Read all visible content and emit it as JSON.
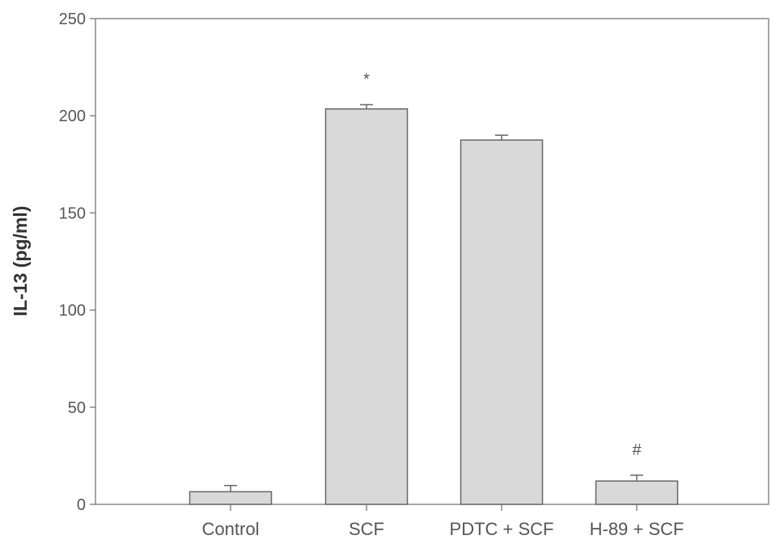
{
  "chart_data": {
    "type": "bar",
    "title": "",
    "xlabel": "",
    "ylabel": "IL-13 (pg/ml)",
    "ylim": [
      0,
      250
    ],
    "yticks": [
      0,
      50,
      100,
      150,
      200,
      250
    ],
    "grid": false,
    "categories": [
      "Control",
      "SCF",
      "PDTC + SCF",
      "H-89 + SCF"
    ],
    "values": [
      6.5,
      203.5,
      187.5,
      12
    ],
    "error_upper": [
      9.7,
      205.7,
      190,
      15
    ],
    "annotations": [
      "",
      "*",
      "",
      "#"
    ],
    "colors": {
      "bar_fill": "#d9d9d9",
      "bar_stroke": "#666666",
      "axis": "#666666"
    }
  }
}
